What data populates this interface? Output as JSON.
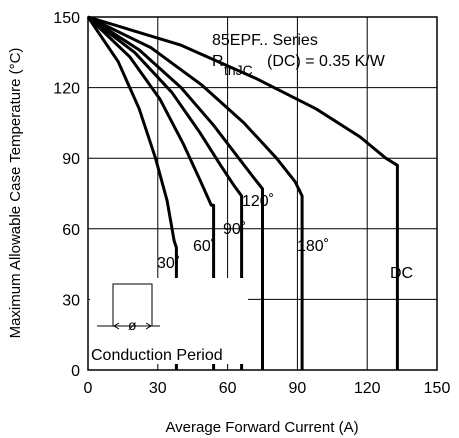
{
  "chart_data": {
    "type": "line",
    "title": "",
    "xlabel": "Average Forward Current (A)",
    "ylabel": "Maximum Allowable Case Temperature (°C)",
    "xlim": [
      0,
      150
    ],
    "ylim": [
      0,
      150
    ],
    "x_ticks": [
      "0",
      "30",
      "60",
      "90",
      "120",
      "150"
    ],
    "y_ticks": [
      "0",
      "30",
      "60",
      "90",
      "120",
      "150"
    ],
    "grid": true,
    "legend": "none",
    "series": [
      {
        "name": "30°",
        "points": [
          [
            0,
            150
          ],
          [
            13,
            131
          ],
          [
            22,
            111
          ],
          [
            29,
            90
          ],
          [
            34,
            72
          ],
          [
            37,
            55
          ],
          [
            38,
            52
          ],
          [
            38,
            0
          ]
        ]
      },
      {
        "name": "60°",
        "points": [
          [
            0,
            150
          ],
          [
            18,
            133
          ],
          [
            31,
            115
          ],
          [
            41,
            96
          ],
          [
            48,
            81
          ],
          [
            53,
            70
          ],
          [
            54,
            70
          ],
          [
            54,
            0
          ]
        ]
      },
      {
        "name": "90°",
        "points": [
          [
            0,
            150
          ],
          [
            20,
            135
          ],
          [
            36,
            118
          ],
          [
            48,
            101
          ],
          [
            57,
            87
          ],
          [
            63,
            78
          ],
          [
            66,
            74
          ],
          [
            66,
            0
          ]
        ]
      },
      {
        "name": "120°",
        "points": [
          [
            0,
            150
          ],
          [
            22,
            136
          ],
          [
            40,
            120
          ],
          [
            54,
            104
          ],
          [
            64,
            91
          ],
          [
            71,
            82
          ],
          [
            75,
            77
          ],
          [
            75,
            0
          ]
        ]
      },
      {
        "name": "180°",
        "points": [
          [
            0,
            150
          ],
          [
            27,
            137
          ],
          [
            49,
            121
          ],
          [
            67,
            105
          ],
          [
            81,
            90
          ],
          [
            89,
            80
          ],
          [
            92,
            74
          ],
          [
            92,
            0
          ]
        ]
      },
      {
        "name": "DC",
        "points": [
          [
            0,
            150
          ],
          [
            40,
            138
          ],
          [
            72,
            124
          ],
          [
            98,
            111
          ],
          [
            117,
            99
          ],
          [
            128,
            90
          ],
          [
            133,
            87
          ],
          [
            133,
            0
          ]
        ]
      }
    ]
  },
  "annotations": {
    "series_title": "85EPF.. Series",
    "rth_r": "R",
    "rth_sub": "thJC",
    "rth_value": "(DC) = 0.35 K/W",
    "label_30": "30˚",
    "label_60": "60˚",
    "label_90": "90˚",
    "label_120": "120˚",
    "label_180": "180˚",
    "label_dc": "DC",
    "phi": "ø",
    "conduction_period": "Conduction Period"
  }
}
